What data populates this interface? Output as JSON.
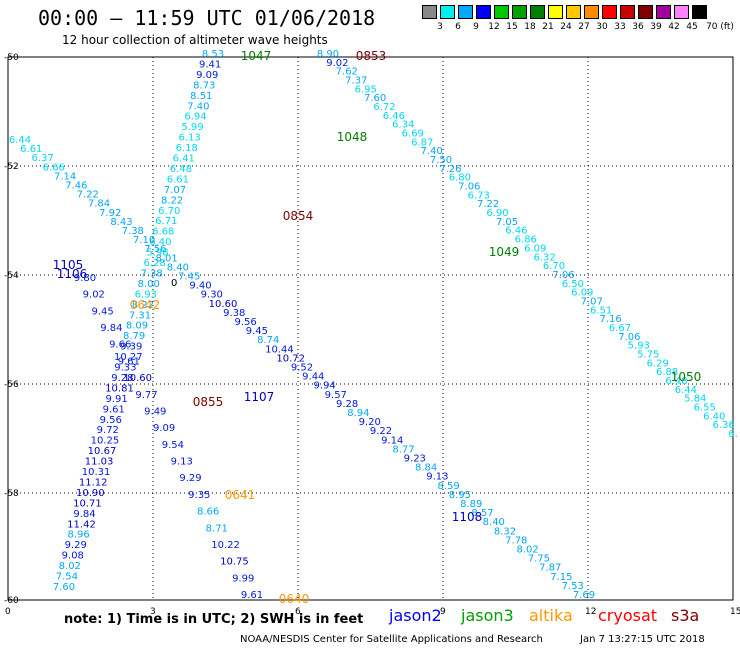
{
  "title": "00:00 – 11:59 UTC 01/06/2018",
  "subtitle": "12 hour collection of altimeter wave heights",
  "legend": {
    "colors": [
      "#888888",
      "#00f0f0",
      "#00a8ff",
      "#0000ff",
      "#00c800",
      "#00a000",
      "#008000",
      "#ffff00",
      "#ffc800",
      "#ff8c00",
      "#ff0000",
      "#c80000",
      "#800000",
      "#a000a0",
      "#ff80ff",
      "#000000"
    ],
    "labels": [
      "3",
      "6",
      "9",
      "12",
      "15",
      "18",
      "21",
      "24",
      "27",
      "30",
      "33",
      "36",
      "39",
      "42",
      "45",
      "70 (ft)"
    ]
  },
  "axes": {
    "y_labels": [
      "-50",
      "-52",
      "-54",
      "-56",
      "-58",
      "-60"
    ],
    "x_labels": [
      "0",
      "3",
      "6",
      "9",
      "12",
      "15"
    ]
  },
  "tracks": [
    {
      "values": [
        "8.53",
        "9.41",
        "9.09",
        "8.73",
        "8.51",
        "7.40",
        "6.94",
        "5.99",
        "6.13",
        "6.18",
        "6.41",
        "6.48",
        "6.61",
        "7.07",
        "8.22",
        "6.70",
        "6.71",
        "6.68",
        "6.40",
        "5.98",
        "6.28",
        "7.38",
        "8.00",
        "6.93",
        "8.22",
        "7.31",
        "8.09",
        "8.79",
        "9.39",
        "10.27",
        "9.33",
        "9.28",
        "10.81",
        "9.91",
        "9.61",
        "9.56",
        "9.72",
        "10.25",
        "10.67",
        "11.03",
        "10.31",
        "11.12",
        "10.90",
        "10.71",
        "9.84",
        "11.42",
        "8.96",
        "9.29",
        "9.08",
        "8.02",
        "7.54",
        "7.60"
      ]
    },
    {
      "values": [
        "8.90",
        "9.02",
        "7.62",
        "7.37",
        "6.95",
        "7.60",
        "6.72",
        "6.46",
        "6.34",
        "6.69",
        "6.87",
        "7.40",
        "7.50",
        "7.26",
        "6.80",
        "7.06",
        "6.73",
        "7.22",
        "6.90",
        "7.05",
        "6.46",
        "6.86",
        "6.09",
        "6.32",
        "6.70",
        "7.06",
        "6.50",
        "6.09",
        "7.07",
        "6.51",
        "7.16",
        "6.67",
        "7.06",
        "5.93",
        "5.75",
        "6.29",
        "6.88",
        "6.48",
        "6.44",
        "5.84",
        "6.55",
        "6.40",
        "6.36",
        "6."
      ]
    },
    {
      "values": [
        "6.44",
        "6.61",
        "6.37",
        "6.66",
        "7.14",
        "7.46",
        "7.22",
        "7.84",
        "7.92",
        "8.43",
        "7.38",
        "7.10",
        "7.56",
        "8.01",
        "8.40",
        "7.45",
        "9.40",
        "9.30",
        "10.60",
        "9.38",
        "9.56",
        "9.45",
        "8.74",
        "10.44",
        "10.72",
        "9.52",
        "9.44",
        "9.94",
        "9.57",
        "9.28",
        "8.94",
        "9.20",
        "9.22",
        "9.14",
        "8.77",
        "9.23",
        "8.84",
        "9.13",
        "8.59",
        "8.95",
        "8.89",
        "8.57",
        "8.40",
        "8.32",
        "7.78",
        "8.02",
        "7.75",
        "7.87",
        "7.15",
        "7.53",
        "7.69"
      ]
    },
    {
      "values": [
        "9.80",
        "9.02",
        "9.45",
        "9.84",
        "9.66",
        "9.61",
        "10.60",
        "9.77",
        "9.49",
        "9.09",
        "9.54",
        "9.13",
        "9.29",
        "9.35",
        "8.66",
        "8.71",
        "10.22",
        "10.75",
        "9.99",
        "9.61"
      ]
    }
  ],
  "pass_labels": [
    {
      "text": "1047",
      "color": "#008000"
    },
    {
      "text": "0853",
      "color": "#800000"
    },
    {
      "text": "1048",
      "color": "#008000"
    },
    {
      "text": "0854",
      "color": "#800000"
    },
    {
      "text": "1049",
      "color": "#008000"
    },
    {
      "text": "1105",
      "color": "#0000c0"
    },
    {
      "text": "1106",
      "color": "#0000c0"
    },
    {
      "text": "0642",
      "color": "#ff9900"
    },
    {
      "text": "1050",
      "color": "#008000"
    },
    {
      "text": "0855",
      "color": "#800000"
    },
    {
      "text": "1107",
      "color": "#0000c0"
    },
    {
      "text": "0641",
      "color": "#ff9900"
    },
    {
      "text": "1108",
      "color": "#0000c0"
    },
    {
      "text": "0640",
      "color": "#ff9900"
    }
  ],
  "contour_label": "0",
  "note": "note:  1) Time is in UTC;  2) SWH is in feet",
  "satellites": [
    {
      "name": "jason2",
      "color": "#0000ff"
    },
    {
      "name": "jason3",
      "color": "#00a000"
    },
    {
      "name": "altika",
      "color": "#ff9900"
    },
    {
      "name": "cryosat",
      "color": "#ff0000"
    },
    {
      "name": "s3a",
      "color": "#800000"
    }
  ],
  "credit": "NOAA/NESDIS Center for Satellite Applications and Research",
  "timestamp": "Jan  7 13:27:15 UTC 2018"
}
